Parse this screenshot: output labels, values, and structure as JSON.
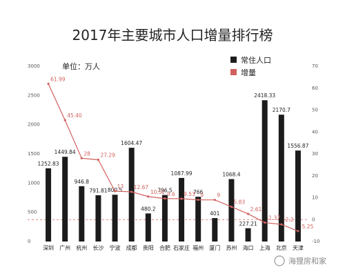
{
  "chart_data": {
    "type": "bar",
    "title": "2017年主要城市人口增量排行榜",
    "unit": "单位：万人",
    "categories": [
      "深圳",
      "广州",
      "杭州",
      "长沙",
      "宁波",
      "成都",
      "贵阳",
      "合肥",
      "石家庄",
      "福州",
      "厦门",
      "苏州",
      "海口",
      "上海",
      "北京",
      "天津"
    ],
    "series": [
      {
        "name": "常住人口",
        "type": "bar",
        "axis": "left",
        "color": "#1c1c1c",
        "values": [
          1252.83,
          1449.84,
          946.8,
          791.81,
          800.5,
          1604.47,
          480.2,
          796.5,
          1087.99,
          766,
          401,
          1068.4,
          227.21,
          2418.33,
          2170.7,
          1556.87
        ],
        "labels": [
          "1252.83",
          "1449.84",
          "946.8",
          "791.81",
          "800.5",
          "1604.47",
          "480.2",
          "796.5",
          "1087.99",
          "766",
          "401",
          "1068.4",
          "227.21",
          "2418.33",
          "2170.7",
          "1556.87"
        ]
      },
      {
        "name": "增量",
        "type": "line",
        "axis": "right",
        "color": "#d0605e",
        "values": [
          61.99,
          45.4,
          28,
          27.29,
          13,
          12.67,
          10.52,
          9.6,
          9.53,
          9,
          9,
          5.83,
          2.61,
          -1.37,
          -2.2,
          -5.25
        ],
        "labels": [
          "61.99",
          "45.40",
          "28",
          "27.29",
          "13",
          "12.67",
          "10.52",
          "9.6",
          "9.53",
          "9",
          "9",
          "5.83",
          "2.61",
          "-1.37",
          "-2.2",
          "-5.25"
        ]
      }
    ],
    "left_axis": {
      "min": 0,
      "max": 3000,
      "ticks": [
        "0",
        "500",
        "1000",
        "1500",
        "2000",
        "2500",
        "3000"
      ]
    },
    "right_axis": {
      "min": -10,
      "max": 70,
      "ticks": [
        "-10",
        "0",
        "10",
        "20",
        "30",
        "40",
        "50",
        "60",
        "70"
      ]
    },
    "legend_position": "top-right",
    "reference_line": {
      "axis": "right",
      "value": 0,
      "style": "dashed",
      "color": "#d0605e"
    }
  },
  "watermark": "海狸房和家"
}
